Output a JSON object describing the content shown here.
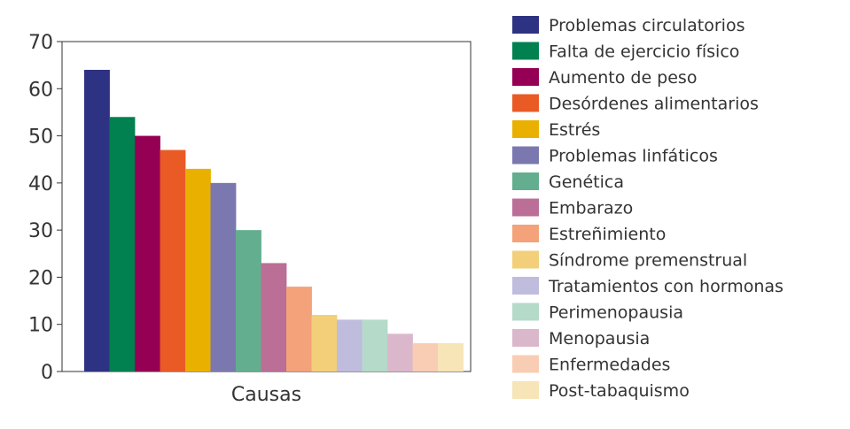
{
  "chart_data": {
    "type": "bar",
    "xlabel": "Causas",
    "ylabel": "",
    "ylim": [
      0,
      70
    ],
    "yticks": [
      "0",
      "10",
      "20",
      "30",
      "40",
      "50",
      "60",
      "70"
    ],
    "grid": false,
    "legend_position": "right",
    "series": [
      {
        "name": "Problemas circulatorios",
        "value": 64,
        "color": "#2e3283"
      },
      {
        "name": "Falta de ejercicio físico",
        "value": 54,
        "color": "#00814f"
      },
      {
        "name": "Aumento de peso",
        "value": 50,
        "color": "#950054"
      },
      {
        "name": "Desórdenes alimentarios",
        "value": 47,
        "color": "#ea5a25"
      },
      {
        "name": "Estrés",
        "value": 43,
        "color": "#eab000"
      },
      {
        "name": "Problemas linfáticos",
        "value": 40,
        "color": "#7b78b0"
      },
      {
        "name": "Genética",
        "value": 30,
        "color": "#62ae8e"
      },
      {
        "name": "Embarazo",
        "value": 23,
        "color": "#bb6e96"
      },
      {
        "name": "Estreñimiento",
        "value": 18,
        "color": "#f3a27a"
      },
      {
        "name": "Síndrome premenstrual",
        "value": 12,
        "color": "#f2cf78"
      },
      {
        "name": "Tratamientos con hormonas",
        "value": 11,
        "color": "#c0bcdd"
      },
      {
        "name": "Perimenopausia",
        "value": 11,
        "color": "#b5dac9"
      },
      {
        "name": "Menopausia",
        "value": 8,
        "color": "#dbb7cb"
      },
      {
        "name": "Enfermedades",
        "value": 6,
        "color": "#f8cdb3"
      },
      {
        "name": "Post-tabaquismo",
        "value": 6,
        "color": "#f7e4b7"
      }
    ]
  }
}
